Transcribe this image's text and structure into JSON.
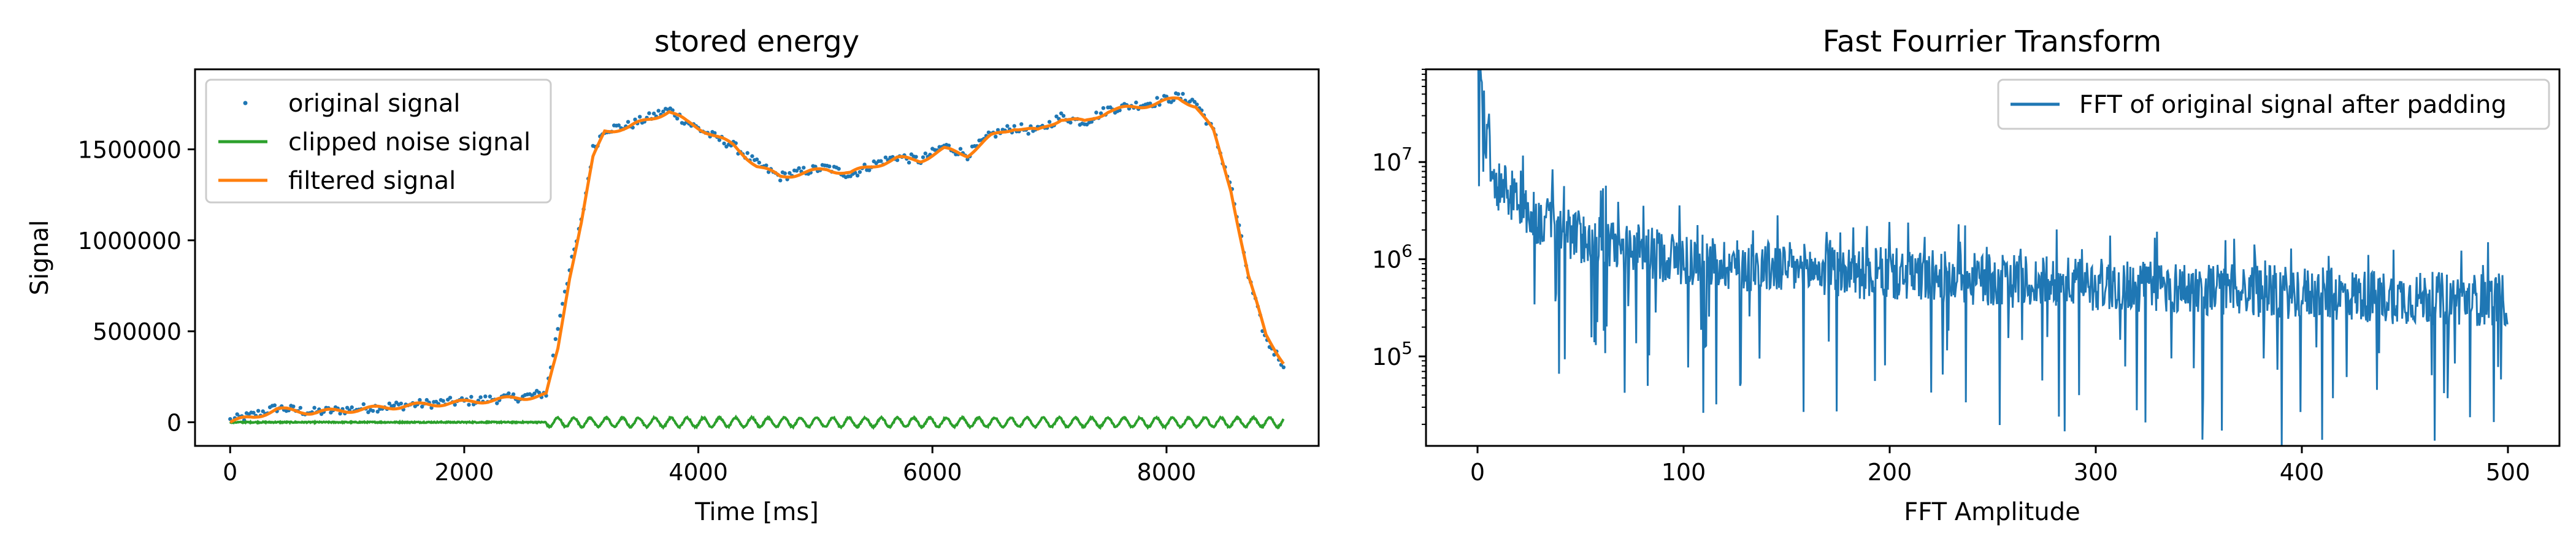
{
  "chart_data": [
    {
      "type": "line",
      "title": "stored energy",
      "xlabel": "Time [ms]",
      "ylabel": "Signal",
      "xlim": [
        -300,
        9300
      ],
      "ylim": [
        -130000,
        1940000
      ],
      "xticks": [
        0,
        2000,
        4000,
        6000,
        8000
      ],
      "xtick_labels": [
        "0",
        "2000",
        "4000",
        "6000",
        "8000"
      ],
      "yticks": [
        0,
        500000,
        1000000,
        1500000
      ],
      "ytick_labels": [
        "0",
        "500000",
        "1000000",
        "1500000"
      ],
      "grid": false,
      "legend": "top-left",
      "series": [
        {
          "name": "original signal",
          "style": "points",
          "color": "#1f77b4",
          "x": [
            0,
            200,
            400,
            700,
            1000,
            1500,
            2000,
            2500,
            2700,
            2850,
            3000,
            3100,
            3200,
            3400,
            3600,
            3750,
            3900,
            4100,
            4300,
            4500,
            4700,
            4900,
            5100,
            5300,
            5500,
            5700,
            5900,
            6100,
            6300,
            6500,
            6700,
            6900,
            7100,
            7300,
            7500,
            7700,
            7900,
            8100,
            8250,
            8400,
            8550,
            8700,
            8850,
            9000
          ],
          "y": [
            10000,
            40000,
            80000,
            55000,
            70000,
            95000,
            115000,
            140000,
            160000,
            700000,
            1100000,
            1500000,
            1610000,
            1630000,
            1680000,
            1720000,
            1650000,
            1580000,
            1520000,
            1420000,
            1350000,
            1380000,
            1400000,
            1360000,
            1420000,
            1460000,
            1440000,
            1520000,
            1470000,
            1580000,
            1620000,
            1600000,
            1680000,
            1650000,
            1720000,
            1740000,
            1760000,
            1790000,
            1760000,
            1600000,
            1300000,
            800000,
            450000,
            320000
          ]
        },
        {
          "name": "clipped noise signal",
          "style": "line",
          "color": "#2ca02c",
          "x": [
            0,
            500,
            1000,
            1500,
            2000,
            2500,
            2700,
            2800,
            3000,
            4000,
            5000,
            6000,
            7000,
            8000,
            9000
          ],
          "y": [
            0,
            2000,
            -3000,
            2000,
            0,
            1000,
            0,
            20000,
            30000,
            25000,
            30000,
            25000,
            20000,
            18000,
            10000
          ],
          "amplitude_after_2700": 25000
        },
        {
          "name": "filtered signal",
          "style": "line",
          "color": "#ff7f0e",
          "x": [
            0,
            200,
            400,
            700,
            1000,
            1500,
            2000,
            2500,
            2700,
            2800,
            2900,
            3000,
            3100,
            3200,
            3400,
            3600,
            3750,
            3900,
            4100,
            4300,
            4500,
            4700,
            4900,
            5100,
            5300,
            5500,
            5700,
            5900,
            6100,
            6300,
            6500,
            6700,
            6900,
            7100,
            7300,
            7500,
            7700,
            7900,
            8100,
            8250,
            8400,
            8550,
            8700,
            8850,
            9000
          ],
          "y": [
            0,
            30000,
            70000,
            55000,
            65000,
            90000,
            110000,
            135000,
            150000,
            400000,
            800000,
            1100000,
            1450000,
            1600000,
            1620000,
            1670000,
            1710000,
            1650000,
            1590000,
            1520000,
            1410000,
            1350000,
            1370000,
            1390000,
            1370000,
            1410000,
            1450000,
            1440000,
            1500000,
            1470000,
            1570000,
            1620000,
            1600000,
            1670000,
            1650000,
            1710000,
            1730000,
            1750000,
            1780000,
            1740000,
            1600000,
            1280000,
            800000,
            480000,
            330000
          ]
        }
      ]
    },
    {
      "type": "line",
      "title": "Fast Fourrier Transform",
      "xlabel": "FFT Amplitude",
      "ylabel": "",
      "yscale": "log",
      "xlim": [
        -25,
        525
      ],
      "ylim": [
        12000,
        90000000
      ],
      "xticks": [
        0,
        100,
        200,
        300,
        400,
        500
      ],
      "xtick_labels": [
        "0",
        "100",
        "200",
        "300",
        "400",
        "500"
      ],
      "yticks": [
        100000,
        1000000,
        10000000
      ],
      "ytick_exponents": [
        "5",
        "6",
        "7"
      ],
      "ytick_base": "10",
      "grid": false,
      "legend": "top-right",
      "series": [
        {
          "name": "FFT of original signal after padding",
          "style": "line",
          "color": "#1f77b4",
          "x": [
            0,
            2,
            4,
            6,
            8,
            10,
            15,
            20,
            25,
            30,
            40,
            50,
            60,
            70,
            80,
            100,
            120,
            150,
            200,
            250,
            300,
            350,
            400,
            450,
            500
          ],
          "y": [
            90000000,
            50000000,
            20000000,
            12000000,
            8000000,
            6000000,
            5000000,
            3500000,
            3000000,
            2500000,
            2000000,
            1700000,
            1500000,
            1300000,
            1200000,
            1000000,
            900000,
            800000,
            700000,
            600000,
            550000,
            500000,
            450000,
            400000,
            380000
          ]
        }
      ]
    }
  ]
}
